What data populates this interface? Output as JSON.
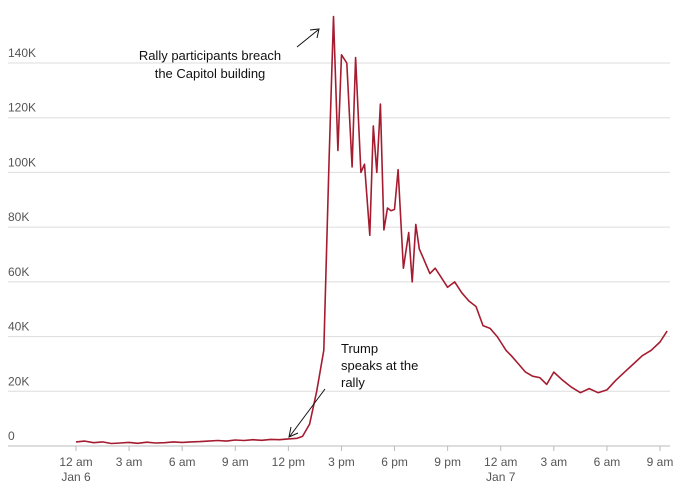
{
  "chart_data": {
    "type": "line",
    "title": "",
    "xlabel": "",
    "ylabel": "",
    "x_ticks": [
      {
        "hour": 0,
        "label": "12 am",
        "sublabel": "Jan 6"
      },
      {
        "hour": 3,
        "label": "3 am",
        "sublabel": ""
      },
      {
        "hour": 6,
        "label": "6 am",
        "sublabel": ""
      },
      {
        "hour": 9,
        "label": "9 am",
        "sublabel": ""
      },
      {
        "hour": 12,
        "label": "12 pm",
        "sublabel": ""
      },
      {
        "hour": 15,
        "label": "3 pm",
        "sublabel": ""
      },
      {
        "hour": 18,
        "label": "6 pm",
        "sublabel": ""
      },
      {
        "hour": 21,
        "label": "9 pm",
        "sublabel": ""
      },
      {
        "hour": 24,
        "label": "12 am",
        "sublabel": "Jan 7"
      },
      {
        "hour": 27,
        "label": "3 am",
        "sublabel": ""
      },
      {
        "hour": 30,
        "label": "6 am",
        "sublabel": ""
      },
      {
        "hour": 33,
        "label": "9 am",
        "sublabel": ""
      }
    ],
    "y_ticks": [
      {
        "value": 0,
        "label": "0"
      },
      {
        "value": 20000,
        "label": "20K"
      },
      {
        "value": 40000,
        "label": "40K"
      },
      {
        "value": 60000,
        "label": "60K"
      },
      {
        "value": 80000,
        "label": "80K"
      },
      {
        "value": 100000,
        "label": "100K"
      },
      {
        "value": 120000,
        "label": "120K"
      },
      {
        "value": 140000,
        "label": "140K"
      }
    ],
    "ylim": [
      0,
      160000
    ],
    "xlim": [
      -1.0,
      33.0
    ],
    "grid": true,
    "line_color": "#a51c30",
    "series": [
      {
        "name": "",
        "x": [
          0,
          0.5,
          1,
          1.5,
          2,
          2.5,
          3,
          3.5,
          4,
          4.5,
          5,
          5.5,
          6,
          6.5,
          7,
          7.5,
          8,
          8.5,
          9,
          9.5,
          10,
          10.5,
          11,
          11.5,
          12,
          12.5,
          12.8,
          13.2,
          13.6,
          14.0,
          14.3,
          14.55,
          14.8,
          15.0,
          15.3,
          15.6,
          15.8,
          16.1,
          16.3,
          16.6,
          16.8,
          17.0,
          17.2,
          17.4,
          17.6,
          17.8,
          18.0,
          18.2,
          18.5,
          18.8,
          19.0,
          19.2,
          19.4,
          19.6,
          19.8,
          20.0,
          20.3,
          20.6,
          21.0,
          21.4,
          21.8,
          22.2,
          22.6,
          23.0,
          23.4,
          23.8,
          24.0,
          24.3,
          24.6,
          25.0,
          25.4,
          25.8,
          26.2,
          26.6,
          27.0,
          27.5,
          28.0,
          28.5,
          29.0,
          29.5,
          30.0,
          30.5,
          31.0,
          31.5,
          32.0,
          32.5,
          33.0,
          33.4
        ],
        "y": [
          1500,
          1800,
          1200,
          1500,
          900,
          1100,
          1300,
          1000,
          1400,
          1100,
          1200,
          1500,
          1300,
          1500,
          1600,
          1800,
          2000,
          1800,
          2200,
          2000,
          2300,
          2100,
          2400,
          2300,
          2600,
          2800,
          3500,
          8000,
          20000,
          35000,
          105000,
          157000,
          108000,
          143000,
          140000,
          102000,
          142000,
          100000,
          103000,
          77000,
          117000,
          100000,
          125000,
          79000,
          87000,
          86000,
          86500,
          101000,
          65000,
          78000,
          60000,
          81000,
          72000,
          69000,
          66000,
          63000,
          65000,
          62000,
          58000,
          60000,
          56000,
          53000,
          51000,
          44000,
          43000,
          40000,
          38000,
          35000,
          33000,
          30000,
          27000,
          25500,
          25000,
          22500,
          27000,
          24000,
          21500,
          19500,
          21000,
          19500,
          20500,
          24000,
          27000,
          30000,
          33000,
          35000,
          38000,
          42000
        ]
      }
    ],
    "annotations": [
      {
        "id": "breach",
        "lines": [
          "Rally participants breach",
          "the Capitol building"
        ]
      },
      {
        "id": "trump",
        "lines": [
          "Trump",
          "speaks at the",
          "rally"
        ]
      }
    ]
  }
}
